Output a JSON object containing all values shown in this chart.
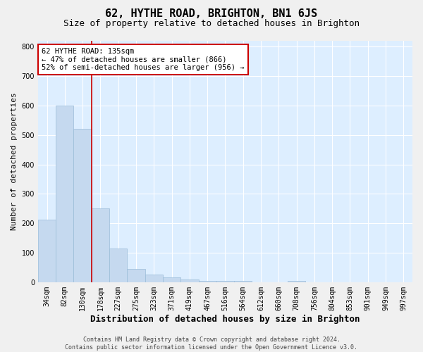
{
  "title": "62, HYTHE ROAD, BRIGHTON, BN1 6JS",
  "subtitle": "Size of property relative to detached houses in Brighton",
  "xlabel": "Distribution of detached houses by size in Brighton",
  "ylabel": "Number of detached properties",
  "bin_labels": [
    "34sqm",
    "82sqm",
    "130sqm",
    "178sqm",
    "227sqm",
    "275sqm",
    "323sqm",
    "371sqm",
    "419sqm",
    "467sqm",
    "516sqm",
    "564sqm",
    "612sqm",
    "660sqm",
    "708sqm",
    "756sqm",
    "804sqm",
    "853sqm",
    "901sqm",
    "949sqm",
    "997sqm"
  ],
  "bar_heights": [
    213,
    600,
    521,
    252,
    116,
    47,
    26,
    17,
    11,
    5,
    5,
    5,
    0,
    0,
    5,
    0,
    0,
    0,
    0,
    0,
    0
  ],
  "bar_color": "#c5d9ef",
  "bar_edge_color": "#9bbcd8",
  "background_color": "#ddeeff",
  "grid_color": "#ffffff",
  "vline_color": "#cc0000",
  "vline_x": 3.0,
  "annotation_text": "62 HYTHE ROAD: 135sqm\n← 47% of detached houses are smaller (866)\n52% of semi-detached houses are larger (956) →",
  "annotation_box_facecolor": "#ffffff",
  "annotation_box_edgecolor": "#cc0000",
  "ylim": [
    0,
    820
  ],
  "yticks": [
    0,
    100,
    200,
    300,
    400,
    500,
    600,
    700,
    800
  ],
  "fig_facecolor": "#f0f0f0",
  "title_fontsize": 11,
  "subtitle_fontsize": 9,
  "xlabel_fontsize": 9,
  "ylabel_fontsize": 8,
  "tick_fontsize": 7,
  "annotation_fontsize": 7.5,
  "footer_fontsize": 6,
  "footer_line1": "Contains HM Land Registry data © Crown copyright and database right 2024.",
  "footer_line2": "Contains public sector information licensed under the Open Government Licence v3.0."
}
